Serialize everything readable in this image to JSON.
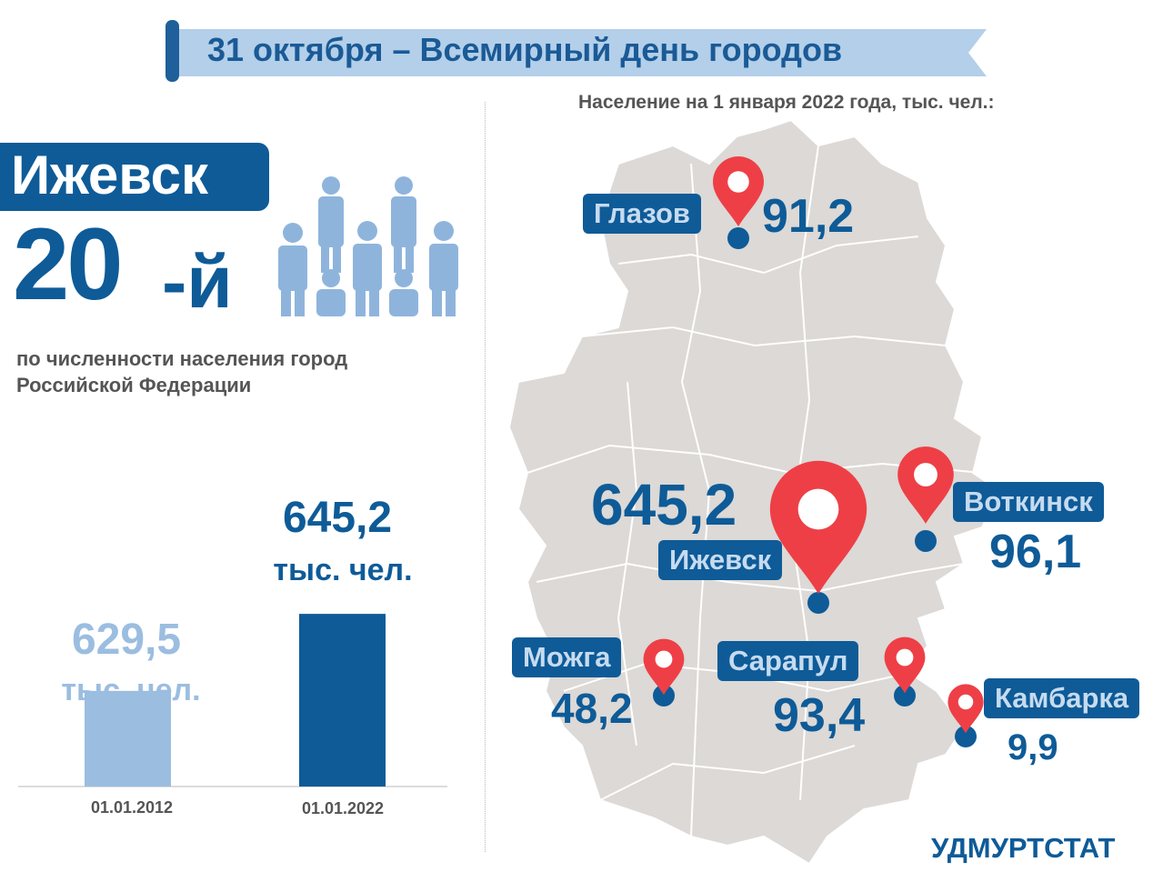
{
  "header": {
    "title": "31 октября – Всемирный день городов",
    "subtitle": "Население на 1 января 2022 года, тыс. чел.:"
  },
  "highlight": {
    "city": "Ижевск",
    "rank_number": "20",
    "rank_suffix": "-й",
    "description": "по численности населения город Российской Федерации"
  },
  "chart_data": {
    "type": "bar",
    "categories": [
      "01.01.2012",
      "01.01.2022"
    ],
    "values": [
      629.5,
      645.2
    ],
    "value_labels": [
      "629,5",
      "645,2"
    ],
    "unit_label": "тыс. чел.",
    "colors": [
      "#9bbde0",
      "#0e5b98"
    ]
  },
  "map": {
    "cities": [
      {
        "name": "Глазов",
        "value": "91,2"
      },
      {
        "name": "Воткинск",
        "value": "96,1"
      },
      {
        "name": "Ижевск",
        "value": "645,2"
      },
      {
        "name": "Можга",
        "value": "48,2"
      },
      {
        "name": "Сарапул",
        "value": "93,4"
      },
      {
        "name": "Камбарка",
        "value": "9,9"
      }
    ],
    "colors": {
      "region_fill": "#dcd9d6",
      "border": "#ffffff",
      "pin": "#ee3f46",
      "label": "#0e5b98"
    }
  },
  "footer": "УДМУРТСТАТ"
}
